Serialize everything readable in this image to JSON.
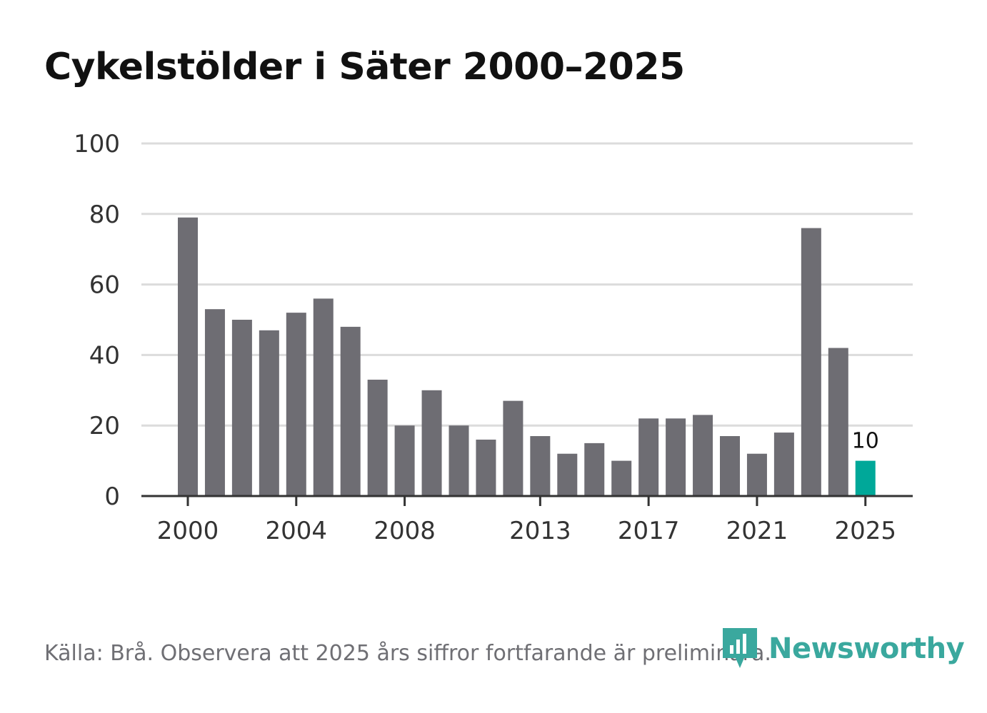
{
  "title": "Cykelstölder i Säter 2000–2025",
  "footer": {
    "source_note": "Källa: Brå. Observera att 2025 års siffror fortfarande är preliminära.",
    "brand": "Newsworthy"
  },
  "colors": {
    "bar": "#6e6d73",
    "highlight": "#00a899",
    "grid": "#dcdcdc",
    "axis": "#333333",
    "brand": "#3aa89e"
  },
  "chart_data": {
    "type": "bar",
    "title": "Cykelstölder i Säter 2000–2025",
    "xlabel": "",
    "ylabel": "",
    "categories": [
      2000,
      2001,
      2002,
      2003,
      2004,
      2005,
      2006,
      2007,
      2008,
      2009,
      2010,
      2011,
      2012,
      2013,
      2014,
      2015,
      2016,
      2017,
      2018,
      2019,
      2020,
      2021,
      2022,
      2023,
      2024,
      2025
    ],
    "values": [
      79,
      53,
      50,
      47,
      52,
      56,
      48,
      33,
      20,
      30,
      20,
      16,
      27,
      17,
      12,
      15,
      10,
      22,
      22,
      23,
      17,
      12,
      18,
      76,
      42,
      10
    ],
    "ylim": [
      0,
      100
    ],
    "yticks": [
      "0",
      "20",
      "40",
      "60",
      "80",
      "100"
    ],
    "xticks": [
      "2000",
      "2004",
      "2008",
      "2013",
      "2017",
      "2021",
      "2025"
    ],
    "highlight_category": 2025,
    "data_label": "10",
    "grid": true
  }
}
